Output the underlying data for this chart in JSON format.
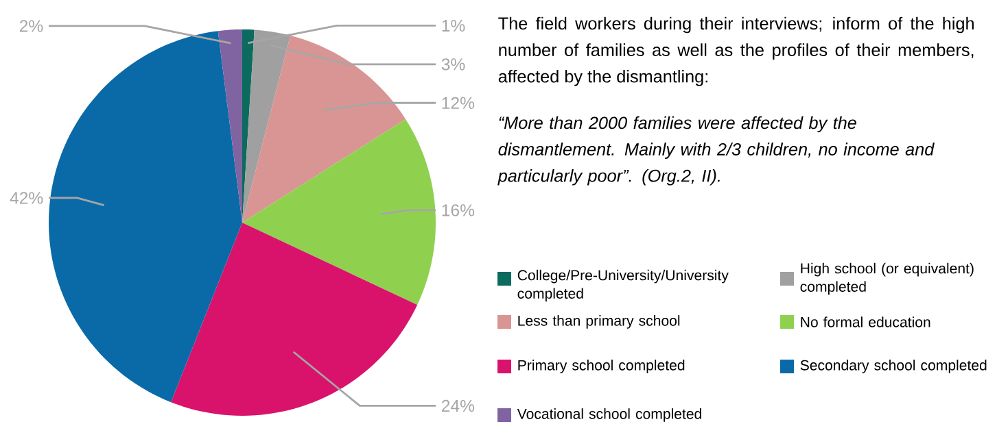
{
  "chart_data": {
    "type": "pie",
    "categories": [
      "College/Pre-University/University completed",
      "High school (or equivalent) completed",
      "Less than primary school",
      "No formal education",
      "Primary school completed",
      "Secondary school completed",
      "Vocational school completed"
    ],
    "values": [
      1,
      3,
      12,
      16,
      24,
      42,
      2
    ],
    "value_labels": [
      "1%",
      "3%",
      "12%",
      "16%",
      "24%",
      "42%",
      "2%"
    ],
    "colors": [
      "#0b6b5f",
      "#a0a0a0",
      "#d99593",
      "#8fd14f",
      "#d9136b",
      "#0a6aa8",
      "#8064a2"
    ],
    "legend": "right",
    "annotations": [
      "The field workers during their interviews; inform of the high number of families as well as the profiles of their members, affected by the dismantling:",
      "“More than 2000 families were affected by the dismantlement. Mainly with 2/3 children, no income and particularly poor”. (Org.2, II)."
    ]
  }
}
